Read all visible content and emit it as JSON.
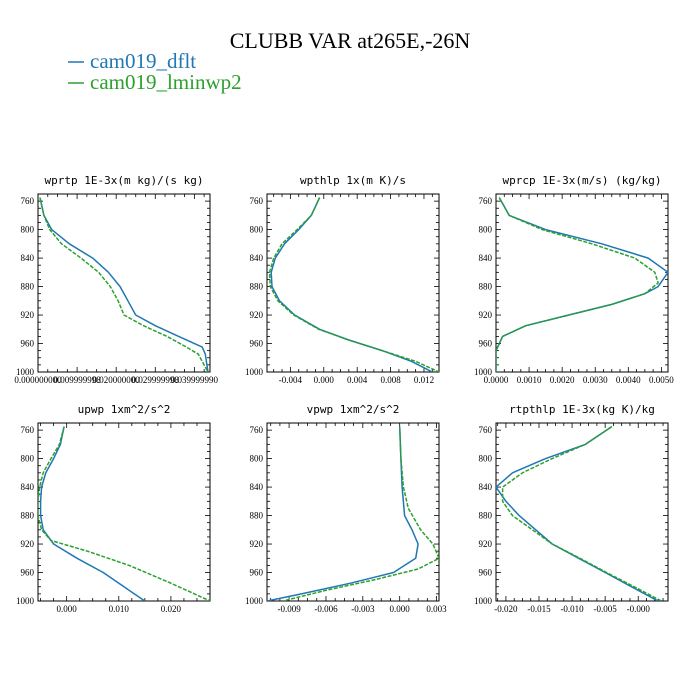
{
  "title": "CLUBB VAR at265E,-26N",
  "legend": [
    {
      "label": "cam019_dflt",
      "color": "#1f77b4",
      "dash": "solid"
    },
    {
      "label": "cam019_lminwp2",
      "color": "#2ca02c",
      "dash": "dashed"
    }
  ],
  "chart_data": [
    {
      "type": "line",
      "title": "wprtp  1E-3x(m kg)/(s kg)",
      "xlim": [
        0.0,
        0.044
      ],
      "ylim": [
        1000,
        750
      ],
      "y_ticks": [
        760,
        800,
        840,
        880,
        920,
        960,
        1000
      ],
      "x_ticks": [
        0.0,
        0.01,
        0.02,
        0.03,
        0.04
      ],
      "x_tick_labels": [
        "0.000000000",
        "0.009999998",
        "0.020000000",
        "0.029999998",
        "0.039999990"
      ],
      "series": [
        {
          "name": "cam019_dflt",
          "points": [
            [
              0.0005,
              755
            ],
            [
              0.0015,
              780
            ],
            [
              0.0035,
              800
            ],
            [
              0.008,
              820
            ],
            [
              0.014,
              840
            ],
            [
              0.018,
              860
            ],
            [
              0.021,
              880
            ],
            [
              0.023,
              900
            ],
            [
              0.025,
              920
            ],
            [
              0.03,
              935
            ],
            [
              0.036,
              950
            ],
            [
              0.042,
              965
            ],
            [
              0.0428,
              975
            ],
            [
              0.0432,
              990
            ],
            [
              0.0435,
              1000
            ]
          ]
        },
        {
          "name": "cam019_lminwp2",
          "points": [
            [
              0.0005,
              755
            ],
            [
              0.0015,
              780
            ],
            [
              0.003,
              800
            ],
            [
              0.006,
              820
            ],
            [
              0.011,
              840
            ],
            [
              0.0155,
              860
            ],
            [
              0.0185,
              880
            ],
            [
              0.0205,
              900
            ],
            [
              0.022,
              920
            ],
            [
              0.027,
              935
            ],
            [
              0.033,
              950
            ],
            [
              0.038,
              965
            ],
            [
              0.041,
              975
            ],
            [
              0.0425,
              990
            ],
            [
              0.0435,
              1000
            ]
          ]
        }
      ]
    },
    {
      "type": "line",
      "title": "wpthlp  1x(m K)/s",
      "xlim": [
        -0.0068,
        0.0138
      ],
      "ylim": [
        1000,
        750
      ],
      "y_ticks": [
        760,
        800,
        840,
        880,
        920,
        960,
        1000
      ],
      "x_ticks": [
        -0.004,
        0.0,
        0.004,
        0.008,
        0.012
      ],
      "x_tick_labels": [
        "-0.004",
        "0.000",
        "0.004",
        "0.008",
        "0.012"
      ],
      "series": [
        {
          "name": "cam019_dflt",
          "points": [
            [
              -0.0005,
              755
            ],
            [
              -0.0015,
              780
            ],
            [
              -0.003,
              800
            ],
            [
              -0.0047,
              820
            ],
            [
              -0.0058,
              840
            ],
            [
              -0.0063,
              860
            ],
            [
              -0.0062,
              880
            ],
            [
              -0.0053,
              900
            ],
            [
              -0.0035,
              920
            ],
            [
              -0.0005,
              940
            ],
            [
              0.003,
              955
            ],
            [
              0.007,
              970
            ],
            [
              0.0105,
              985
            ],
            [
              0.013,
              1000
            ]
          ]
        },
        {
          "name": "cam019_lminwp2",
          "points": [
            [
              -0.0005,
              755
            ],
            [
              -0.0015,
              780
            ],
            [
              -0.0032,
              800
            ],
            [
              -0.005,
              820
            ],
            [
              -0.006,
              840
            ],
            [
              -0.0065,
              860
            ],
            [
              -0.0064,
              880
            ],
            [
              -0.0055,
              900
            ],
            [
              -0.0036,
              920
            ],
            [
              -0.0006,
              940
            ],
            [
              0.003,
              955
            ],
            [
              0.007,
              970
            ],
            [
              0.011,
              985
            ],
            [
              0.0138,
              1000
            ]
          ]
        }
      ]
    },
    {
      "type": "line",
      "title": "wprcp  1E-3x(m/s) (kg/kg)",
      "xlim": [
        0.0,
        0.0052
      ],
      "ylim": [
        1000,
        750
      ],
      "y_ticks": [
        760,
        800,
        840,
        880,
        920,
        960,
        1000
      ],
      "x_ticks": [
        0.0,
        0.001,
        0.002,
        0.003,
        0.004,
        0.005
      ],
      "x_tick_labels": [
        "0.0000",
        "0.0010",
        "0.0020",
        "0.0030",
        "0.0040",
        "0.0050"
      ],
      "series": [
        {
          "name": "cam019_dflt",
          "points": [
            [
              0.0001,
              755
            ],
            [
              0.0004,
              780
            ],
            [
              0.0015,
              800
            ],
            [
              0.0032,
              820
            ],
            [
              0.0046,
              840
            ],
            [
              0.0052,
              860
            ],
            [
              0.0049,
              880
            ],
            [
              0.0045,
              890
            ],
            [
              0.0035,
              905
            ],
            [
              0.0022,
              920
            ],
            [
              0.0009,
              935
            ],
            [
              0.0002,
              950
            ],
            [
              0.0,
              970
            ],
            [
              0.0,
              1000
            ]
          ]
        },
        {
          "name": "cam019_lminwp2",
          "points": [
            [
              0.0001,
              755
            ],
            [
              0.0004,
              780
            ],
            [
              0.0014,
              800
            ],
            [
              0.0029,
              820
            ],
            [
              0.0042,
              840
            ],
            [
              0.0048,
              860
            ],
            [
              0.0049,
              875
            ],
            [
              0.0045,
              890
            ],
            [
              0.0035,
              905
            ],
            [
              0.0022,
              920
            ],
            [
              0.0009,
              935
            ],
            [
              0.0002,
              950
            ],
            [
              0.0,
              970
            ],
            [
              0.0,
              1000
            ]
          ]
        }
      ]
    },
    {
      "type": "line",
      "title": "upwp  1xm^2/s^2",
      "xlim": [
        -0.0055,
        0.0275
      ],
      "ylim": [
        1000,
        750
      ],
      "y_ticks": [
        760,
        800,
        840,
        880,
        920,
        960,
        1000
      ],
      "x_ticks": [
        0.0,
        0.01,
        0.02
      ],
      "x_tick_labels": [
        "0.000",
        "0.010",
        "0.020"
      ],
      "series": [
        {
          "name": "cam019_dflt",
          "points": [
            [
              -0.0005,
              755
            ],
            [
              -0.0012,
              780
            ],
            [
              -0.0025,
              800
            ],
            [
              -0.004,
              820
            ],
            [
              -0.0048,
              840
            ],
            [
              -0.005,
              860
            ],
            [
              -0.005,
              880
            ],
            [
              -0.0045,
              900
            ],
            [
              -0.0025,
              920
            ],
            [
              0.002,
              940
            ],
            [
              0.007,
              960
            ],
            [
              0.011,
              980
            ],
            [
              0.015,
              1000
            ]
          ]
        },
        {
          "name": "cam019_lminwp2",
          "points": [
            [
              -0.0005,
              755
            ],
            [
              -0.0014,
              780
            ],
            [
              -0.003,
              800
            ],
            [
              -0.0045,
              820
            ],
            [
              -0.0052,
              840
            ],
            [
              -0.0055,
              860
            ],
            [
              -0.0055,
              880
            ],
            [
              -0.0048,
              900
            ],
            [
              -0.003,
              915
            ],
            [
              0.004,
              930
            ],
            [
              0.012,
              950
            ],
            [
              0.02,
              975
            ],
            [
              0.0275,
              1000
            ]
          ]
        }
      ]
    },
    {
      "type": "line",
      "title": "vpwp  1xm^2/s^2",
      "xlim": [
        -0.0108,
        0.0032
      ],
      "ylim": [
        1000,
        750
      ],
      "y_ticks": [
        760,
        800,
        840,
        880,
        920,
        960,
        1000
      ],
      "x_ticks": [
        -0.009,
        -0.006,
        -0.003,
        0.0,
        0.003
      ],
      "x_tick_labels": [
        "-0.009",
        "-0.006",
        "-0.003",
        "0.000",
        "0.003"
      ],
      "series": [
        {
          "name": "cam019_dflt",
          "points": [
            [
              0.0,
              755
            ],
            [
              0.0001,
              800
            ],
            [
              0.0002,
              840
            ],
            [
              0.0004,
              880
            ],
            [
              0.001,
              900
            ],
            [
              0.0015,
              920
            ],
            [
              0.0013,
              940
            ],
            [
              -0.0005,
              960
            ],
            [
              -0.004,
              975
            ],
            [
              -0.008,
              990
            ],
            [
              -0.0108,
              1000
            ]
          ]
        },
        {
          "name": "cam019_lminwp2",
          "points": [
            [
              0.0,
              755
            ],
            [
              0.0001,
              800
            ],
            [
              0.0003,
              840
            ],
            [
              0.0007,
              870
            ],
            [
              0.0017,
              900
            ],
            [
              0.0027,
              920
            ],
            [
              0.0032,
              940
            ],
            [
              0.0015,
              955
            ],
            [
              -0.002,
              970
            ],
            [
              -0.006,
              985
            ],
            [
              -0.0095,
              1000
            ]
          ]
        }
      ]
    },
    {
      "type": "line",
      "title": "rtpthlp  1E-3x(kg K)/kg",
      "xlim": [
        -0.0215,
        0.0045
      ],
      "ylim": [
        1000,
        750
      ],
      "y_ticks": [
        760,
        800,
        840,
        880,
        920,
        960,
        1000
      ],
      "x_ticks": [
        -0.02,
        -0.015,
        -0.01,
        -0.005,
        0.0
      ],
      "x_tick_labels": [
        "-0.020",
        "-0.015",
        "-0.010",
        "-0.005",
        "-0.000"
      ],
      "series": [
        {
          "name": "cam019_dflt",
          "points": [
            [
              -0.004,
              755
            ],
            [
              -0.008,
              780
            ],
            [
              -0.014,
              800
            ],
            [
              -0.019,
              820
            ],
            [
              -0.0215,
              840
            ],
            [
              -0.02,
              860
            ],
            [
              -0.018,
              880
            ],
            [
              -0.0155,
              900
            ],
            [
              -0.013,
              920
            ],
            [
              -0.009,
              940
            ],
            [
              -0.005,
              960
            ],
            [
              -0.001,
              980
            ],
            [
              0.003,
              1000
            ]
          ]
        },
        {
          "name": "cam019_lminwp2",
          "points": [
            [
              -0.004,
              755
            ],
            [
              -0.008,
              780
            ],
            [
              -0.013,
              800
            ],
            [
              -0.0175,
              820
            ],
            [
              -0.0205,
              840
            ],
            [
              -0.0205,
              860
            ],
            [
              -0.019,
              880
            ],
            [
              -0.016,
              900
            ],
            [
              -0.013,
              920
            ],
            [
              -0.0088,
              940
            ],
            [
              -0.0048,
              960
            ],
            [
              -0.0006,
              980
            ],
            [
              0.0035,
              1000
            ]
          ]
        }
      ]
    }
  ]
}
